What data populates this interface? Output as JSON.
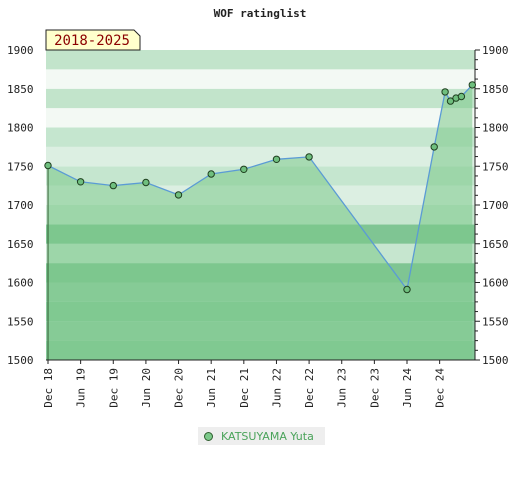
{
  "chart_data": {
    "type": "area",
    "title": "WOF ratinglist",
    "period_label": "2018-2025",
    "ylim": [
      1500,
      1900
    ],
    "yticks": [
      1500,
      1550,
      1600,
      1650,
      1700,
      1750,
      1800,
      1850,
      1900
    ],
    "xticks": [
      {
        "label": "Dec 18",
        "date": "2018-12"
      },
      {
        "label": "Jun 19",
        "date": "2019-06"
      },
      {
        "label": "Dec 19",
        "date": "2019-12"
      },
      {
        "label": "Jun 20",
        "date": "2020-06"
      },
      {
        "label": "Dec 20",
        "date": "2020-12"
      },
      {
        "label": "Jun 21",
        "date": "2021-06"
      },
      {
        "label": "Dec 21",
        "date": "2021-12"
      },
      {
        "label": "Jun 22",
        "date": "2022-06"
      },
      {
        "label": "Dec 22",
        "date": "2022-12"
      },
      {
        "label": "Jun 23",
        "date": "2023-06"
      },
      {
        "label": "Dec 23",
        "date": "2023-12"
      },
      {
        "label": "Jun 24",
        "date": "2024-06"
      },
      {
        "label": "Dec 24",
        "date": "2024-12"
      }
    ],
    "series": [
      {
        "name": "KATSUYAMA Yuta",
        "color": "#5b9bd5",
        "fill": "#7cc98a",
        "points": [
          {
            "date": "2018-12",
            "value": 1751
          },
          {
            "date": "2019-06",
            "value": 1730
          },
          {
            "date": "2019-12",
            "value": 1725
          },
          {
            "date": "2020-06",
            "value": 1729
          },
          {
            "date": "2020-12",
            "value": 1713
          },
          {
            "date": "2021-06",
            "value": 1740
          },
          {
            "date": "2021-12",
            "value": 1746
          },
          {
            "date": "2022-06",
            "value": 1759
          },
          {
            "date": "2022-12",
            "value": 1762
          },
          {
            "date": "2024-06",
            "value": 1591
          },
          {
            "date": "2024-11",
            "value": 1775
          },
          {
            "date": "2025-01",
            "value": 1846
          },
          {
            "date": "2025-02",
            "value": 1834
          },
          {
            "date": "2025-03",
            "value": 1838
          },
          {
            "date": "2025-04",
            "value": 1840
          },
          {
            "date": "2025-06",
            "value": 1855
          }
        ]
      }
    ],
    "grid": true,
    "legend_position": "bottom-center"
  }
}
